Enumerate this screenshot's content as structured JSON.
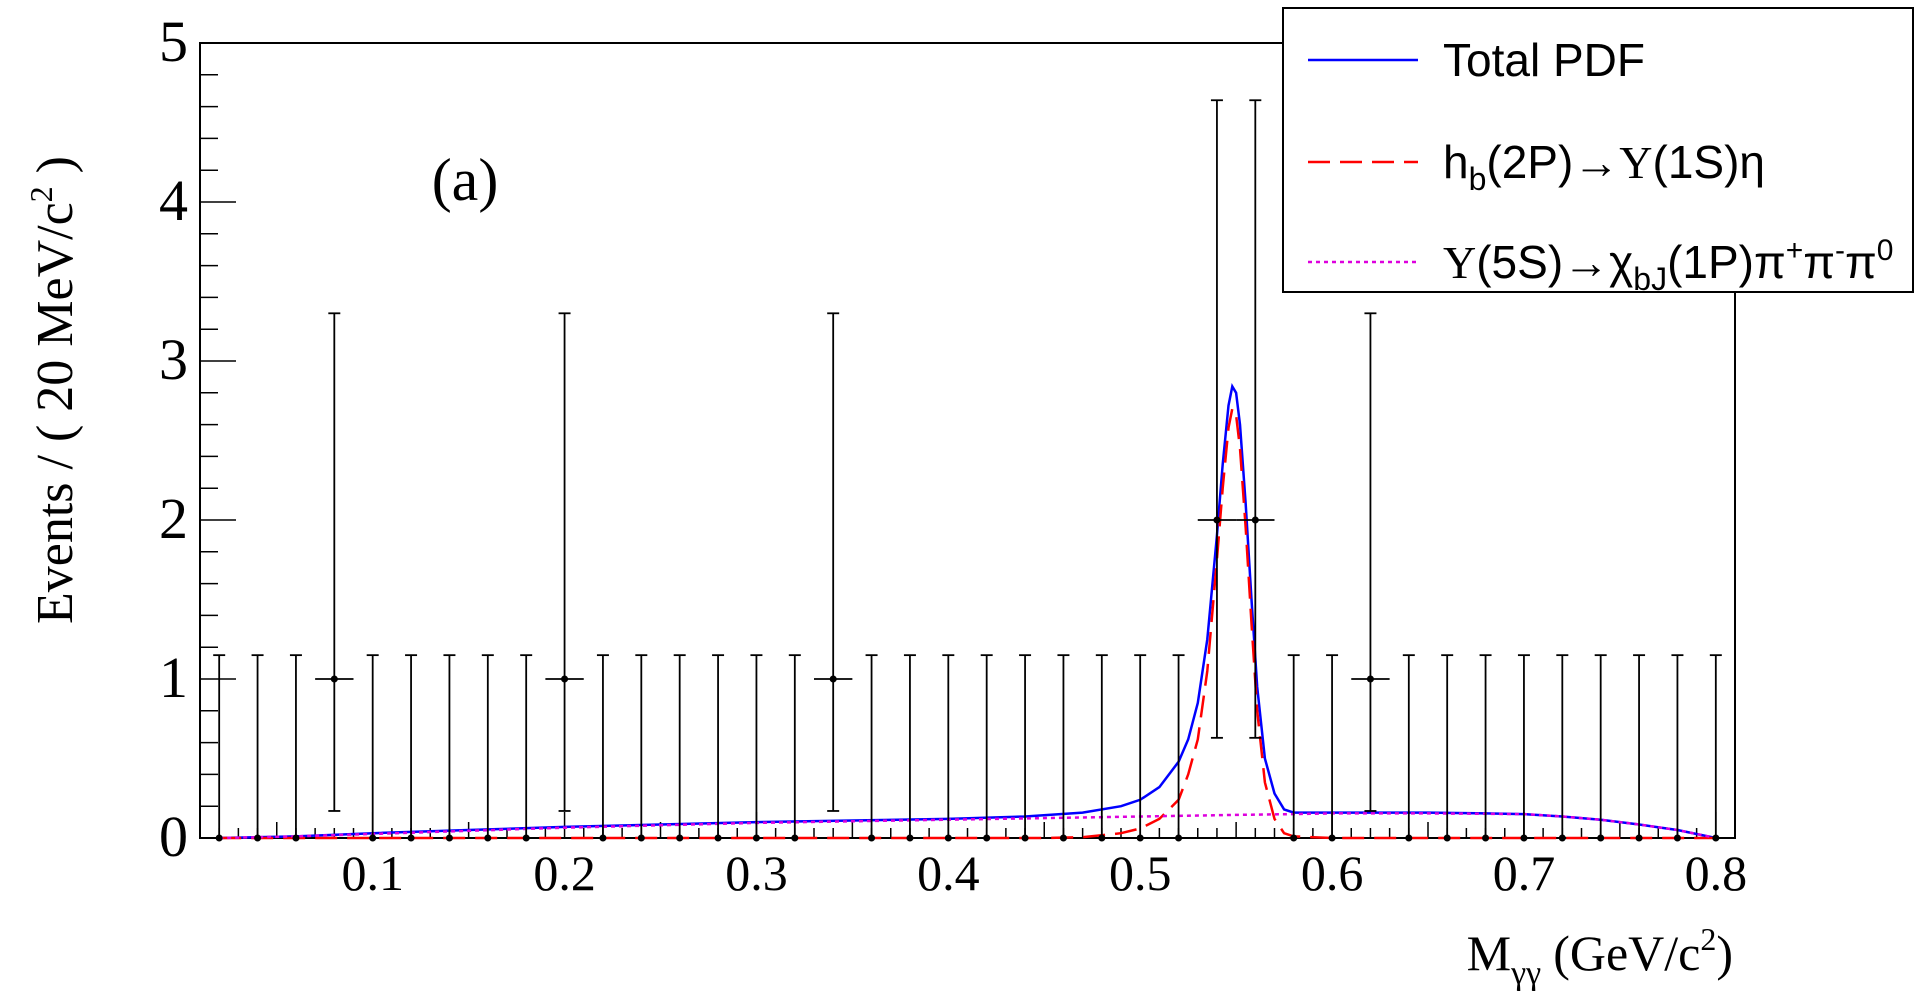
{
  "chart_data": {
    "type": "line",
    "panel_label": "(a)",
    "xlabel": {
      "main": "M",
      "sub": "γγ",
      "unit_pre": "(GeV/c",
      "unit_sup": "2",
      "unit_post": ")"
    },
    "ylabel": {
      "pre": "Events / ( 20 MeV/c",
      "sup": "2",
      "post": " )"
    },
    "xlim": [
      0.01,
      0.81
    ],
    "ylim": [
      0,
      5
    ],
    "x_major_ticks": [
      0.1,
      0.2,
      0.3,
      0.4,
      0.5,
      0.6,
      0.7,
      0.8
    ],
    "x_tick_labels": [
      "0.1",
      "0.2",
      "0.3",
      "0.4",
      "0.5",
      "0.6",
      "0.7",
      "0.8"
    ],
    "y_major_ticks": [
      0,
      1,
      2,
      3,
      4,
      5
    ],
    "y_tick_labels": [
      "0",
      "1",
      "2",
      "3",
      "4",
      "5"
    ],
    "grid": false,
    "legend_placement": "top-right",
    "data_points": {
      "x": [
        0.02,
        0.04,
        0.06,
        0.08,
        0.1,
        0.12,
        0.14,
        0.16,
        0.18,
        0.2,
        0.22,
        0.24,
        0.26,
        0.28,
        0.3,
        0.32,
        0.34,
        0.36,
        0.38,
        0.4,
        0.42,
        0.44,
        0.46,
        0.48,
        0.5,
        0.52,
        0.54,
        0.56,
        0.58,
        0.6,
        0.62,
        0.64,
        0.66,
        0.68,
        0.7,
        0.72,
        0.74,
        0.76,
        0.78,
        0.8
      ],
      "y": [
        0,
        0,
        0,
        1,
        0,
        0,
        0,
        0,
        0,
        1,
        0,
        0,
        0,
        0,
        0,
        0,
        1,
        0,
        0,
        0,
        0,
        0,
        0,
        0,
        0,
        0,
        2,
        2,
        0,
        0,
        1,
        0,
        0,
        0,
        0,
        0,
        0,
        0,
        0,
        0
      ],
      "err_up": [
        1.15,
        1.15,
        1.15,
        2.3,
        1.15,
        1.15,
        1.15,
        1.15,
        1.15,
        2.3,
        1.15,
        1.15,
        1.15,
        1.15,
        1.15,
        1.15,
        2.3,
        1.15,
        1.15,
        1.15,
        1.15,
        1.15,
        1.15,
        1.15,
        1.15,
        1.15,
        2.64,
        2.64,
        1.15,
        1.15,
        2.3,
        1.15,
        1.15,
        1.15,
        1.15,
        1.15,
        1.15,
        1.15,
        1.15,
        1.15
      ],
      "err_down": [
        0,
        0,
        0,
        0.83,
        0,
        0,
        0,
        0,
        0,
        0.83,
        0,
        0,
        0,
        0,
        0,
        0,
        0.83,
        0,
        0,
        0,
        0,
        0,
        0,
        0,
        0,
        0,
        1.37,
        1.37,
        0,
        0,
        0.83,
        0,
        0,
        0,
        0,
        0,
        0,
        0,
        0,
        0
      ],
      "x_half_width": 0.01
    },
    "series": [
      {
        "name": "Total PDF",
        "color": "#0000ff",
        "style": "solid",
        "x": [
          0.02,
          0.06,
          0.1,
          0.15,
          0.2,
          0.25,
          0.3,
          0.35,
          0.4,
          0.44,
          0.47,
          0.49,
          0.5,
          0.51,
          0.52,
          0.525,
          0.53,
          0.535,
          0.54,
          0.543,
          0.546,
          0.548,
          0.55,
          0.552,
          0.555,
          0.558,
          0.561,
          0.565,
          0.57,
          0.575,
          0.58,
          0.6,
          0.62,
          0.65,
          0.68,
          0.7,
          0.72,
          0.74,
          0.76,
          0.78,
          0.8
        ],
        "y": [
          0,
          0.01,
          0.03,
          0.05,
          0.07,
          0.085,
          0.1,
          0.11,
          0.12,
          0.135,
          0.16,
          0.2,
          0.24,
          0.32,
          0.48,
          0.62,
          0.85,
          1.25,
          1.9,
          2.35,
          2.72,
          2.84,
          2.8,
          2.6,
          2.1,
          1.5,
          0.95,
          0.5,
          0.28,
          0.18,
          0.16,
          0.16,
          0.16,
          0.16,
          0.155,
          0.15,
          0.135,
          0.115,
          0.085,
          0.05,
          0
        ]
      },
      {
        "name": "h_b(2P)→Υ(1S)η",
        "color": "#ff0000",
        "style": "dashed",
        "x": [
          0.02,
          0.45,
          0.47,
          0.49,
          0.5,
          0.51,
          0.52,
          0.525,
          0.53,
          0.535,
          0.54,
          0.543,
          0.546,
          0.548,
          0.55,
          0.552,
          0.555,
          0.558,
          0.561,
          0.565,
          0.57,
          0.575,
          0.58,
          0.6,
          0.8
        ],
        "y": [
          0,
          0,
          0.005,
          0.03,
          0.06,
          0.12,
          0.24,
          0.4,
          0.62,
          1.05,
          1.75,
          2.2,
          2.58,
          2.7,
          2.66,
          2.45,
          1.95,
          1.35,
          0.8,
          0.35,
          0.12,
          0.03,
          0.01,
          0,
          0
        ]
      },
      {
        "name": "Υ(5S)→χ_bJ(1P)π⁺π⁻π⁰",
        "color": "#dd00dd",
        "style": "dotted",
        "x": [
          0.02,
          0.06,
          0.1,
          0.15,
          0.2,
          0.25,
          0.3,
          0.35,
          0.4,
          0.45,
          0.5,
          0.55,
          0.58,
          0.6,
          0.65,
          0.7,
          0.72,
          0.74,
          0.76,
          0.78,
          0.8
        ],
        "y": [
          0,
          0.01,
          0.025,
          0.045,
          0.065,
          0.08,
          0.095,
          0.105,
          0.115,
          0.125,
          0.135,
          0.145,
          0.15,
          0.155,
          0.155,
          0.15,
          0.135,
          0.115,
          0.085,
          0.05,
          0
        ]
      }
    ],
    "legend": {
      "entries": [
        {
          "color": "#0000ff",
          "style": "solid",
          "text": "Total PDF"
        },
        {
          "color": "#ff0000",
          "style": "dashed",
          "parts": [
            {
              "t": "h"
            },
            {
              "t": "b",
              "sub": true
            },
            {
              "t": "(2P)→"
            },
            {
              "t": "Υ",
              "serif": true
            },
            {
              "t": "(1S)η"
            }
          ]
        },
        {
          "color": "#dd00dd",
          "style": "dotted",
          "parts": [
            {
              "t": "Υ",
              "serif": true
            },
            {
              "t": "(5S)→χ"
            },
            {
              "t": "bJ",
              "sub": true
            },
            {
              "t": "(1P)π"
            },
            {
              "t": "+",
              "sup": true
            },
            {
              "t": "π"
            },
            {
              "t": "-",
              "sup": true
            },
            {
              "t": "π"
            },
            {
              "t": "0",
              "sup": true
            }
          ]
        }
      ]
    }
  }
}
